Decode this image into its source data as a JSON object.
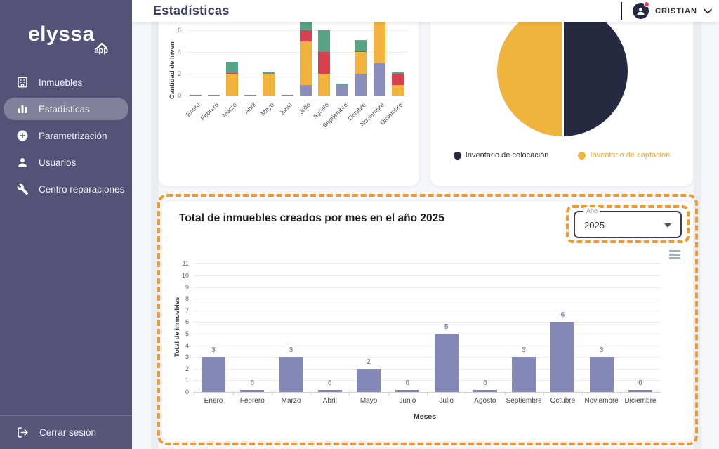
{
  "app": {
    "logo": "elyssa",
    "logo_sub": "app"
  },
  "sidebar": {
    "items": [
      {
        "label": "Inmuebles",
        "icon": "building-icon",
        "active": false
      },
      {
        "label": "Estadísticas",
        "icon": "bar-chart-icon",
        "active": true
      },
      {
        "label": "Parametrización",
        "icon": "plus-circle-icon",
        "active": false
      },
      {
        "label": "Usuarios",
        "icon": "user-icon",
        "active": false
      },
      {
        "label": "Centro reparaciones",
        "icon": "wrench-icon",
        "active": false
      }
    ],
    "logout_label": "Cerrar sesión",
    "logout_icon": "logout-icon"
  },
  "header": {
    "title": "Estadísticas",
    "user_name": "CRISTIAN",
    "avatar_icon": "user-avatar-icon",
    "notification_dot_color": "#e8384f",
    "caret_icon": "chevron-down-icon"
  },
  "bottom_card": {
    "year_label": "Año",
    "year_value": "2025",
    "menu_icon": "hamburger-menu-icon"
  },
  "colors": {
    "sidebar": "#545377",
    "accent_orange_dashed": "#f0992f",
    "navy": "#262a40",
    "yellow": "#f0b43c",
    "bar_purple": "#8388b6"
  },
  "chart_data": [
    {
      "type": "bar",
      "stacked": true,
      "title": "",
      "ylabel": "Cantidad de Inven",
      "xlabel": "",
      "categories": [
        "Enero",
        "Febrero",
        "Marzo",
        "Abril",
        "Mayo",
        "Junio",
        "Julio",
        "Agosto",
        "Septiembre",
        "Octubre",
        "Noviembre",
        "Diciembre"
      ],
      "visible_yticks": [
        0,
        2,
        4,
        6
      ],
      "note": "top of chart cut off by header scroll",
      "series": [
        {
          "name": "segment-purple",
          "color": "#8a8eba",
          "values": [
            0,
            0,
            0,
            0,
            0,
            0,
            1,
            0,
            1,
            2,
            3,
            0
          ]
        },
        {
          "name": "segment-yellow",
          "color": "#f1b33e",
          "values": [
            0,
            0,
            2,
            0,
            2,
            0,
            4,
            2,
            0,
            2,
            4,
            1
          ]
        },
        {
          "name": "segment-red",
          "color": "#d7414f",
          "values": [
            0,
            0,
            0.07,
            0,
            0,
            0,
            1,
            2,
            0,
            0.07,
            0,
            1
          ]
        },
        {
          "name": "segment-green",
          "color": "#56a483",
          "values": [
            0.08,
            0.08,
            1,
            0.08,
            0.1,
            0.08,
            1,
            2,
            0.1,
            1,
            0,
            0.1
          ]
        }
      ]
    },
    {
      "type": "pie",
      "slices": [
        {
          "label": "Inventario de colocación",
          "color": "#262a40",
          "value": 50,
          "label_color": "#333333"
        },
        {
          "label": "Inventario de captación",
          "color": "#f0b43c",
          "value": 50,
          "label_color": "#eda93a"
        }
      ],
      "legend_position": "bottom"
    },
    {
      "type": "bar",
      "title": "Total de inmuebles creados por mes en el año 2025",
      "categories": [
        "Enero",
        "Febrero",
        "Marzo",
        "Abril",
        "Mayo",
        "Junio",
        "Julio",
        "Agosto",
        "Septiembre",
        "Octubre",
        "Noviembre",
        "Diciembre"
      ],
      "values": [
        3,
        0,
        3,
        0,
        2,
        0,
        5,
        0,
        3,
        6,
        3,
        0
      ],
      "xlabel": "Meses",
      "ylabel": "Total de inmuebles",
      "ylim": [
        0,
        11
      ],
      "yticks": [
        0,
        1,
        2,
        3,
        4,
        5,
        6,
        7,
        8,
        9,
        10,
        11
      ],
      "bar_color": "#8388b6",
      "grid": true
    }
  ]
}
